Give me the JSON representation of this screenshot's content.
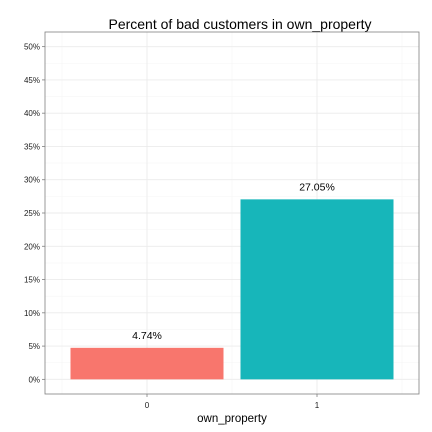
{
  "chart_data": {
    "type": "bar",
    "title": "Percent of bad customers in own_property",
    "xlabel": "own_property",
    "ylabel": "",
    "categories": [
      "0",
      "1"
    ],
    "values": [
      4.74,
      27.05
    ],
    "data_labels": [
      "4.74%",
      "27.05%"
    ],
    "bar_colors": [
      "#F8766D",
      "#17B6BA"
    ],
    "ylim": [
      -2.2,
      52.2
    ],
    "yticks": [
      0,
      5,
      10,
      15,
      20,
      25,
      30,
      35,
      40,
      45,
      50
    ],
    "ytick_labels": [
      "0%",
      "5%",
      "10%",
      "15%",
      "20%",
      "25%",
      "30%",
      "35%",
      "40%",
      "45%",
      "50%"
    ],
    "grid": true,
    "legend": "none"
  }
}
